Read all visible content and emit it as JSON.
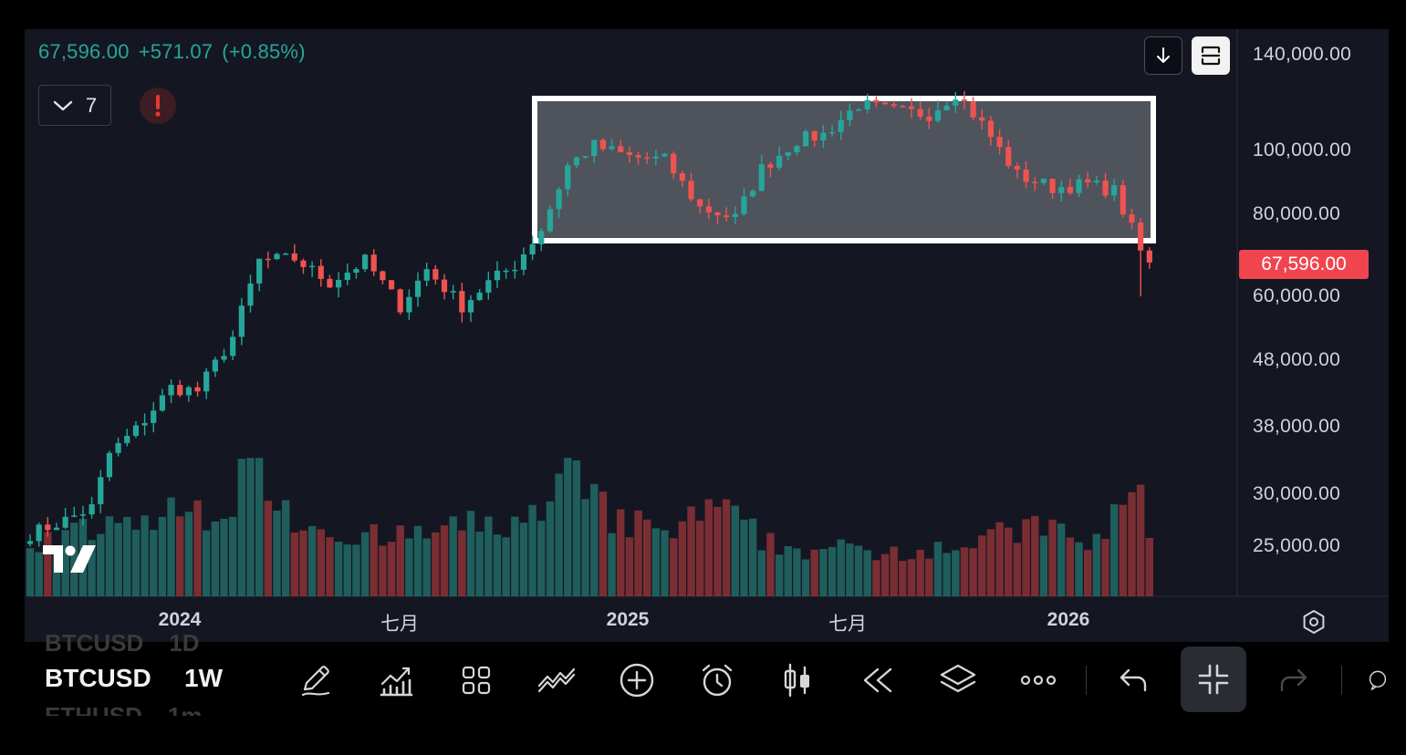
{
  "header": {
    "last_price": "67,596.00",
    "change": "+571.07",
    "change_pct": "(+0.85%)",
    "indicator_count": "7"
  },
  "price_axis": {
    "labels": [
      "140,000.00",
      "100,000.00",
      "80,000.00",
      "60,000.00",
      "48,000.00",
      "38,000.00",
      "30,000.00",
      "25,000.00"
    ],
    "current_price_tag": "67,596.00"
  },
  "time_axis": {
    "labels": [
      {
        "text": "2024",
        "bold": true
      },
      {
        "text": "七月",
        "bold": false
      },
      {
        "text": "2025",
        "bold": true
      },
      {
        "text": "七月",
        "bold": false
      },
      {
        "text": "2026",
        "bold": true
      }
    ]
  },
  "bottom_bar": {
    "symbol": "BTCUSD",
    "interval": "1W",
    "ghost_above": [
      "BTCUSD",
      "1D"
    ],
    "ghost_below": [
      "ETHUSD",
      "1m"
    ],
    "tools": [
      "pencil-icon",
      "indicators-icon",
      "grid-icon",
      "patterns-icon",
      "add-circle-icon",
      "alarm-icon",
      "bar-style-icon",
      "replay-icon",
      "layers-icon",
      "more-icon",
      "undo-icon",
      "collapse-icon",
      "redo-icon"
    ]
  },
  "colors": {
    "up": "#26a69a",
    "down": "#ef5350",
    "up_volume": "#1f5e5c",
    "down_volume": "#7a2e33",
    "background": "#141722",
    "box_fill": "#5d6069",
    "box_border": "#ffffff"
  },
  "chart_data": {
    "type": "candlestick",
    "symbol": "BTCUSD",
    "interval": "1W",
    "y_scale": "log",
    "ylim": [
      21000,
      150000
    ],
    "x_range": [
      "2023-09-11",
      "2026-03-23"
    ],
    "anchors": [
      {
        "t": 0,
        "p": 26000
      },
      {
        "t": 4,
        "p": 27300
      },
      {
        "t": 7,
        "p": 28500
      },
      {
        "t": 9,
        "p": 34500
      },
      {
        "t": 12,
        "p": 37500
      },
      {
        "t": 16,
        "p": 43500
      },
      {
        "t": 19,
        "p": 43000
      },
      {
        "t": 23,
        "p": 52000
      },
      {
        "t": 26,
        "p": 68000
      },
      {
        "t": 30,
        "p": 68500
      },
      {
        "t": 34,
        "p": 63000
      },
      {
        "t": 38,
        "p": 68000
      },
      {
        "t": 42,
        "p": 58000
      },
      {
        "t": 45,
        "p": 66000
      },
      {
        "t": 49,
        "p": 58000
      },
      {
        "t": 52,
        "p": 63000
      },
      {
        "t": 55,
        "p": 67000
      },
      {
        "t": 58,
        "p": 76000
      },
      {
        "t": 61,
        "p": 95000
      },
      {
        "t": 64,
        "p": 102000
      },
      {
        "t": 68,
        "p": 98000
      },
      {
        "t": 72,
        "p": 97000
      },
      {
        "t": 76,
        "p": 82000
      },
      {
        "t": 80,
        "p": 79000
      },
      {
        "t": 83,
        "p": 94000
      },
      {
        "t": 87,
        "p": 104000
      },
      {
        "t": 90,
        "p": 106000
      },
      {
        "t": 94,
        "p": 118000
      },
      {
        "t": 98,
        "p": 115000
      },
      {
        "t": 102,
        "p": 114000
      },
      {
        "t": 105,
        "p": 123000
      },
      {
        "t": 108,
        "p": 110000
      },
      {
        "t": 112,
        "p": 92000
      },
      {
        "t": 116,
        "p": 88000
      },
      {
        "t": 120,
        "p": 89000
      },
      {
        "t": 123,
        "p": 87000
      },
      {
        "t": 125,
        "p": 76000
      },
      {
        "t": 126,
        "p": 68000
      },
      {
        "t": 127,
        "p": 67596
      }
    ],
    "volume_anchors": [
      {
        "t": 0,
        "v": 0.25
      },
      {
        "t": 9,
        "v": 0.3
      },
      {
        "t": 14,
        "v": 0.35
      },
      {
        "t": 22,
        "v": 0.4
      },
      {
        "t": 26,
        "v": 0.65
      },
      {
        "t": 30,
        "v": 0.35
      },
      {
        "t": 40,
        "v": 0.25
      },
      {
        "t": 48,
        "v": 0.3
      },
      {
        "t": 58,
        "v": 0.35
      },
      {
        "t": 61,
        "v": 0.55
      },
      {
        "t": 66,
        "v": 0.35
      },
      {
        "t": 72,
        "v": 0.28
      },
      {
        "t": 78,
        "v": 0.4
      },
      {
        "t": 85,
        "v": 0.22
      },
      {
        "t": 96,
        "v": 0.2
      },
      {
        "t": 108,
        "v": 0.25
      },
      {
        "t": 115,
        "v": 0.32
      },
      {
        "t": 120,
        "v": 0.22
      },
      {
        "t": 125,
        "v": 0.45
      },
      {
        "t": 127,
        "v": 0.22
      }
    ],
    "annotations": [
      {
        "type": "rectangle",
        "x_from": "2024-11-11",
        "x_to": "2026-01-26",
        "y_from": 75000,
        "y_to": 123000
      }
    ]
  }
}
